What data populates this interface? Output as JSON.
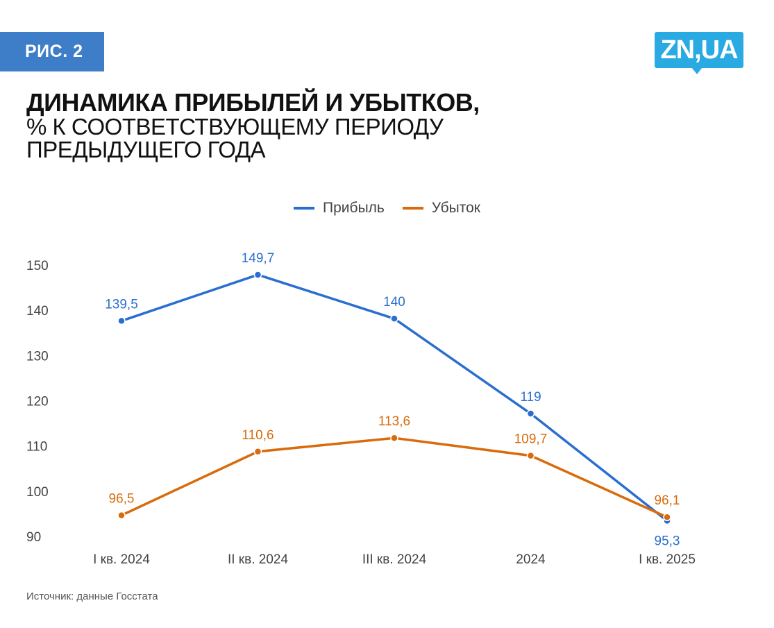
{
  "badge": "РИС. 2",
  "logo": "ZN,UA",
  "title": {
    "bold": "ДИНАМИКА ПРИБЫЛЕЙ И УБЫТКОВ,",
    "line2": "% К СООТВЕТСТВУЮЩЕМУ ПЕРИОДУ",
    "line3": "ПРЕДЫДУЩЕГО ГОДА"
  },
  "source": "Источник: данные Госстата",
  "chart_data": {
    "type": "line",
    "title": "ДИНАМИКА ПРИБЫЛЕЙ И УБЫТКОВ, % К СООТВЕТСТВУЮЩЕМУ ПЕРИОДУ ПРЕДЫДУЩЕГО ГОДА",
    "xlabel": "",
    "ylabel": "",
    "categories": [
      "I кв. 2024",
      "II кв. 2024",
      "III кв. 2024",
      "2024",
      "I кв. 2025"
    ],
    "ylim": [
      90,
      150
    ],
    "yticks": [
      150,
      140,
      130,
      120,
      110,
      100,
      90
    ],
    "grid": false,
    "legend": "top-center",
    "series": [
      {
        "name": "Прибыль",
        "color": "#2a6ecf",
        "values": [
          139.5,
          149.7,
          140,
          119,
          95.3
        ],
        "labels": [
          "139,5",
          "149,7",
          "140",
          "119",
          "95,3"
        ],
        "label_pos": [
          "above",
          "above",
          "above",
          "above",
          "below"
        ]
      },
      {
        "name": "Убыток",
        "color": "#d96b0c",
        "values": [
          96.5,
          110.6,
          113.6,
          109.7,
          96.1
        ],
        "labels": [
          "96,5",
          "110,6",
          "113,6",
          "109,7",
          "96,1"
        ],
        "label_pos": [
          "above",
          "above",
          "above",
          "above",
          "above"
        ]
      }
    ]
  }
}
